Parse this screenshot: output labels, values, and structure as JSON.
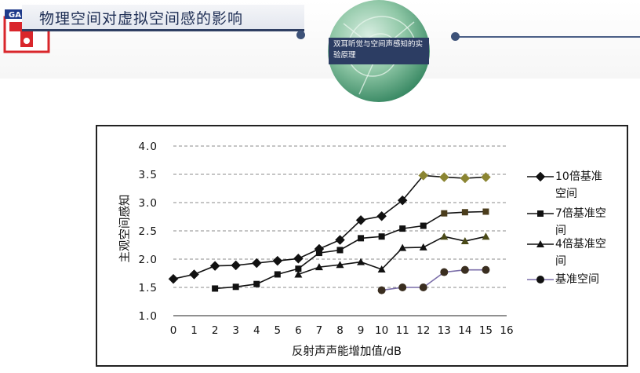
{
  "header": {
    "logo_text": "GA",
    "title": "物理空间对虚拟空间感的影响",
    "badge": "双耳听觉与空间声感知的实验原理"
  },
  "chart_data": {
    "type": "line",
    "title": "",
    "xlabel": "反射声声能增加值/dB",
    "ylabel": "主观空间感知",
    "xlim": [
      0,
      16
    ],
    "ylim": [
      1.0,
      4.0
    ],
    "x_ticks": [
      "0",
      "1",
      "2",
      "3",
      "4",
      "5",
      "6",
      "7",
      "8",
      "9",
      "10",
      "11",
      "12",
      "13",
      "14",
      "15",
      "16"
    ],
    "y_ticks": [
      "1.0",
      "1.5",
      "2.0",
      "2.5",
      "3.0",
      "3.5",
      "4.0"
    ],
    "grid": "horizontal dashed",
    "legend_position": "right",
    "series": [
      {
        "name": "10倍基准空间",
        "marker": "diamond",
        "line_color": "#111111",
        "x": [
          0,
          1,
          2,
          3,
          4,
          5,
          6,
          7,
          8,
          9,
          10,
          11,
          12,
          13,
          14,
          15
        ],
        "values": [
          1.65,
          1.73,
          1.88,
          1.89,
          1.93,
          1.97,
          2.01,
          2.18,
          2.34,
          2.69,
          2.76,
          3.04,
          3.48,
          3.45,
          3.43,
          3.45
        ],
        "highlight_color": "#8b8532",
        "highlight_from_x": 12
      },
      {
        "name": "7倍基准空间",
        "marker": "square",
        "line_color": "#111111",
        "x": [
          2,
          3,
          4,
          5,
          6,
          7,
          8,
          9,
          10,
          11,
          12,
          13,
          14,
          15
        ],
        "values": [
          1.48,
          1.51,
          1.56,
          1.73,
          1.83,
          2.11,
          2.16,
          2.37,
          2.4,
          2.54,
          2.59,
          2.81,
          2.83,
          2.84
        ],
        "highlight_color": "#4b3d1c",
        "highlight_from_x": 13
      },
      {
        "name": "4倍基准空间",
        "marker": "triangle",
        "line_color": "#111111",
        "x": [
          6,
          7,
          8,
          9,
          10,
          11,
          12,
          13,
          14,
          15
        ],
        "values": [
          1.73,
          1.86,
          1.9,
          1.95,
          1.82,
          2.2,
          2.21,
          2.4,
          2.32,
          2.4
        ],
        "highlight_color": "#4a4a18",
        "highlight_from_x": 13
      },
      {
        "name": "基准空间",
        "marker": "circle",
        "line_color": "#7a6da8",
        "x": [
          10,
          11,
          12,
          13,
          14,
          15
        ],
        "values": [
          1.45,
          1.5,
          1.5,
          1.77,
          1.81,
          1.81
        ],
        "highlight_color": "#3a2e20",
        "highlight_from_x": 10
      }
    ]
  }
}
